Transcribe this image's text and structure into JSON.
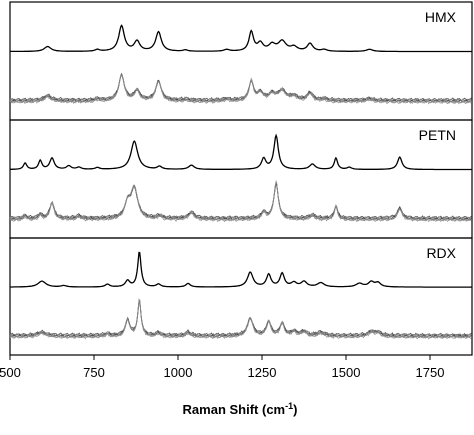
{
  "chart_data": {
    "type": "line",
    "xlabel": "Raman Shift (cm-1)",
    "xlabel_parts": {
      "main": "Raman Shift (cm",
      "sup": "-1",
      "close": ")"
    },
    "xlim": [
      500,
      1875
    ],
    "xticks": [
      500,
      750,
      1000,
      1250,
      1500,
      1750
    ],
    "xtick_labels": [
      "500",
      "750",
      "1000",
      "1250",
      "1500",
      "1750"
    ],
    "ylabel": "",
    "grid": false,
    "colors": {
      "reference": "#000000",
      "measured": "#8a8a8a",
      "measured_dark": "#3a3a3a"
    },
    "panels": [
      {
        "label": "HMX",
        "reference_peaks": [
          [
            612,
            0.14,
            12
          ],
          [
            760,
            0.05,
            8
          ],
          [
            832,
            0.72,
            10
          ],
          [
            878,
            0.28,
            10
          ],
          [
            942,
            0.55,
            10
          ],
          [
            1022,
            0.04,
            8
          ],
          [
            1145,
            0.05,
            10
          ],
          [
            1218,
            0.55,
            8
          ],
          [
            1245,
            0.22,
            10
          ],
          [
            1280,
            0.18,
            12
          ],
          [
            1310,
            0.28,
            14
          ],
          [
            1345,
            0.12,
            12
          ],
          [
            1393,
            0.22,
            10
          ],
          [
            1435,
            0.05,
            10
          ],
          [
            1570,
            0.06,
            12
          ]
        ],
        "measured_peaks": [
          [
            612,
            0.14,
            12
          ],
          [
            760,
            0.05,
            8
          ],
          [
            832,
            0.72,
            10
          ],
          [
            878,
            0.28,
            10
          ],
          [
            942,
            0.55,
            10
          ],
          [
            1022,
            0.04,
            8
          ],
          [
            1145,
            0.05,
            10
          ],
          [
            1218,
            0.55,
            8
          ],
          [
            1245,
            0.22,
            10
          ],
          [
            1280,
            0.18,
            12
          ],
          [
            1310,
            0.28,
            14
          ],
          [
            1345,
            0.12,
            12
          ],
          [
            1393,
            0.22,
            10
          ],
          [
            1435,
            0.05,
            10
          ],
          [
            1570,
            0.06,
            12
          ]
        ]
      },
      {
        "label": "PETN",
        "reference_peaks": [
          [
            545,
            0.18,
            6
          ],
          [
            590,
            0.25,
            6
          ],
          [
            625,
            0.32,
            8
          ],
          [
            675,
            0.1,
            8
          ],
          [
            705,
            0.06,
            8
          ],
          [
            760,
            0.05,
            8
          ],
          [
            870,
            0.8,
            12
          ],
          [
            945,
            0.08,
            8
          ],
          [
            1040,
            0.12,
            10
          ],
          [
            1255,
            0.3,
            8
          ],
          [
            1292,
            0.95,
            8
          ],
          [
            1400,
            0.15,
            10
          ],
          [
            1470,
            0.32,
            6
          ],
          [
            1510,
            0.06,
            8
          ],
          [
            1660,
            0.35,
            8
          ]
        ],
        "measured_peaks": [
          [
            545,
            0.08,
            6
          ],
          [
            590,
            0.12,
            6
          ],
          [
            625,
            0.45,
            8
          ],
          [
            705,
            0.08,
            8
          ],
          [
            850,
            0.4,
            10
          ],
          [
            870,
            0.85,
            12
          ],
          [
            945,
            0.08,
            8
          ],
          [
            1040,
            0.18,
            10
          ],
          [
            1255,
            0.18,
            8
          ],
          [
            1292,
            1.0,
            8
          ],
          [
            1400,
            0.1,
            10
          ],
          [
            1470,
            0.35,
            6
          ],
          [
            1660,
            0.3,
            8
          ]
        ]
      },
      {
        "label": "RDX",
        "reference_peaks": [
          [
            595,
            0.17,
            14
          ],
          [
            660,
            0.04,
            10
          ],
          [
            790,
            0.08,
            8
          ],
          [
            850,
            0.18,
            8
          ],
          [
            885,
            1.0,
            6
          ],
          [
            942,
            0.08,
            8
          ],
          [
            1030,
            0.1,
            8
          ],
          [
            1215,
            0.42,
            10
          ],
          [
            1270,
            0.35,
            8
          ],
          [
            1310,
            0.38,
            8
          ],
          [
            1345,
            0.12,
            10
          ],
          [
            1375,
            0.15,
            10
          ],
          [
            1425,
            0.12,
            12
          ],
          [
            1540,
            0.1,
            12
          ],
          [
            1575,
            0.14,
            10
          ],
          [
            1595,
            0.12,
            10
          ]
        ],
        "measured_peaks": [
          [
            595,
            0.1,
            14
          ],
          [
            790,
            0.06,
            8
          ],
          [
            850,
            0.45,
            8
          ],
          [
            885,
            1.0,
            6
          ],
          [
            942,
            0.08,
            8
          ],
          [
            1030,
            0.1,
            8
          ],
          [
            1215,
            0.5,
            10
          ],
          [
            1270,
            0.4,
            8
          ],
          [
            1310,
            0.35,
            8
          ],
          [
            1345,
            0.12,
            10
          ],
          [
            1375,
            0.12,
            10
          ],
          [
            1425,
            0.1,
            12
          ],
          [
            1575,
            0.12,
            10
          ],
          [
            1595,
            0.1,
            10
          ]
        ]
      }
    ]
  }
}
